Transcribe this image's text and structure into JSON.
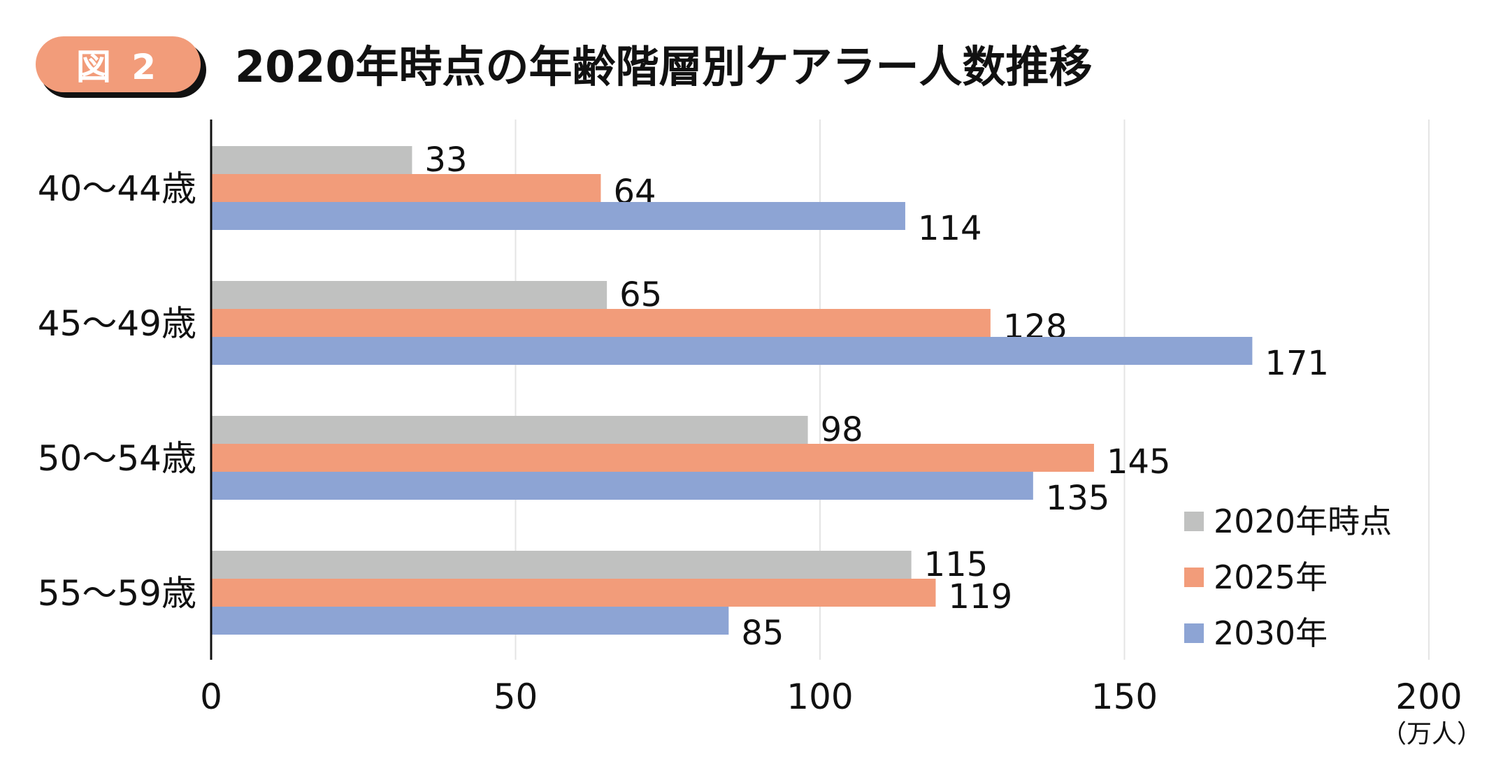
{
  "badge": "図 2",
  "chart_data": {
    "type": "bar",
    "orientation": "horizontal",
    "title": "2020年時点の年齢階層別ケアラー人数推移",
    "categories": [
      "40～44歳",
      "45～49歳",
      "50～54歳",
      "55～59歳"
    ],
    "series": [
      {
        "name": "2020年時点",
        "color": "#c0c1c0",
        "values": [
          33,
          65,
          98,
          115
        ]
      },
      {
        "name": "2025年",
        "color": "#f29c7a",
        "values": [
          64,
          128,
          145,
          119
        ]
      },
      {
        "name": "2030年",
        "color": "#8da4d4",
        "values": [
          114,
          171,
          135,
          85
        ]
      }
    ],
    "xlim": [
      0,
      200
    ],
    "xticks": [
      0,
      50,
      100,
      150,
      200
    ],
    "xticklabels": [
      "0",
      "50",
      "100",
      "150",
      "200"
    ],
    "xunit": "（万人）",
    "grid": true,
    "legend": "bottom-right"
  }
}
